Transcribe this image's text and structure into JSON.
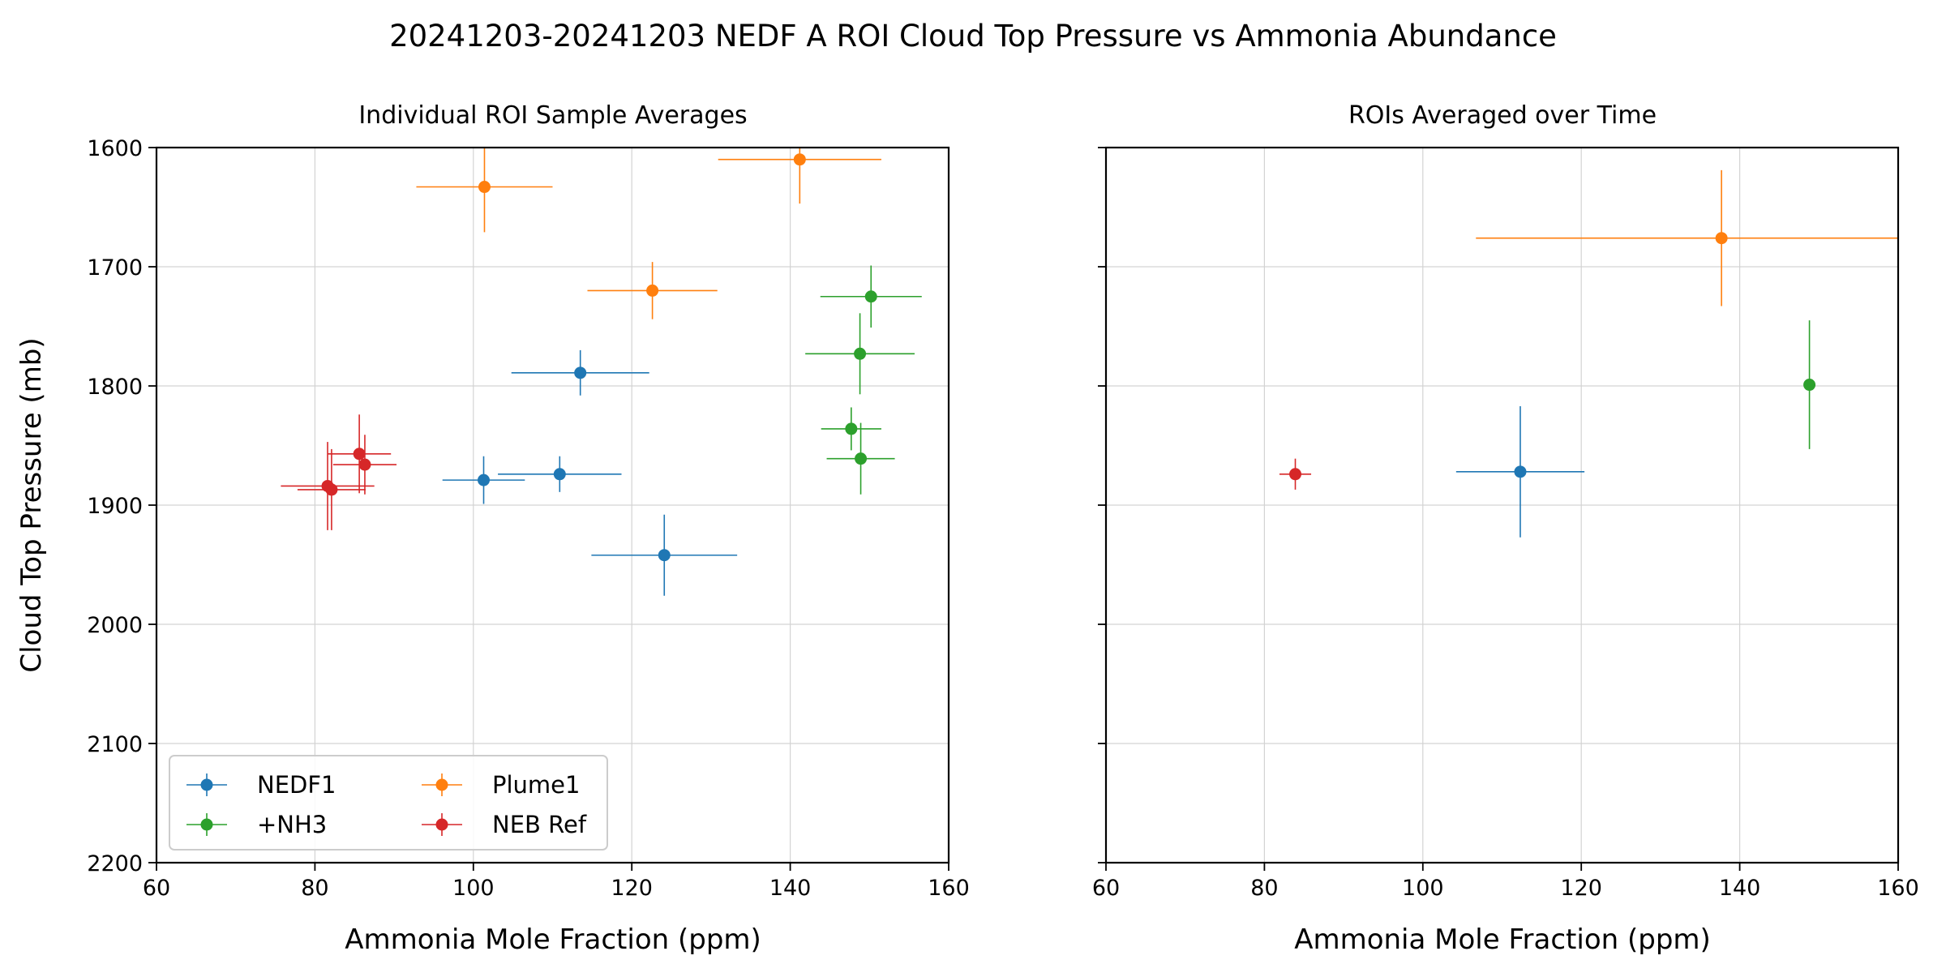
{
  "suptitle": "20241203-20241203 NEDF A ROI Cloud Top Pressure vs Ammonia Abundance",
  "chart_data": [
    {
      "type": "scatter",
      "title": "Individual ROI Sample Averages",
      "xlabel": "Ammonia Mole Fraction (ppm)",
      "ylabel": "Cloud Top Pressure (mb)",
      "xlim": [
        60,
        160
      ],
      "ylim": [
        2200,
        1600
      ],
      "y_inverted": true,
      "grid": true,
      "xticks": [
        "60",
        "80",
        "100",
        "120",
        "140",
        "160"
      ],
      "yticks": [
        "1600",
        "1700",
        "1800",
        "1900",
        "2000",
        "2100",
        "2200"
      ],
      "legend": {
        "placement": "lower-left",
        "columns": 2
      },
      "series": [
        {
          "name": "NEDF1",
          "color": "#1f77b4",
          "points": [
            {
              "x": 113.5,
              "y": 1789,
              "xerr": 8.7,
              "yerr": 19
            },
            {
              "x": 101.3,
              "y": 1879,
              "xerr": 5.2,
              "yerr": 20
            },
            {
              "x": 110.9,
              "y": 1874,
              "xerr": 7.8,
              "yerr": 15
            },
            {
              "x": 124.1,
              "y": 1942,
              "xerr": 9.2,
              "yerr": 34
            }
          ]
        },
        {
          "name": "Plume1",
          "color": "#ff7f0e",
          "points": [
            {
              "x": 101.4,
              "y": 1633,
              "xerr": 8.6,
              "yerr": 38
            },
            {
              "x": 141.2,
              "y": 1610,
              "xerr": 10.3,
              "yerr": 37
            },
            {
              "x": 122.6,
              "y": 1720,
              "xerr": 8.2,
              "yerr": 24
            }
          ]
        },
        {
          "name": "+NH3",
          "color": "#2ca02c",
          "points": [
            {
              "x": 150.2,
              "y": 1725,
              "xerr": 6.4,
              "yerr": 26
            },
            {
              "x": 148.8,
              "y": 1773,
              "xerr": 6.9,
              "yerr": 34
            },
            {
              "x": 147.7,
              "y": 1836,
              "xerr": 3.8,
              "yerr": 18
            },
            {
              "x": 148.9,
              "y": 1861,
              "xerr": 4.3,
              "yerr": 30
            }
          ]
        },
        {
          "name": "NEB Ref",
          "color": "#d62728",
          "points": [
            {
              "x": 85.6,
              "y": 1857,
              "xerr": 4.0,
              "yerr": 33
            },
            {
              "x": 86.3,
              "y": 1866,
              "xerr": 4.0,
              "yerr": 25
            },
            {
              "x": 81.6,
              "y": 1884,
              "xerr": 5.9,
              "yerr": 37
            },
            {
              "x": 82.1,
              "y": 1887,
              "xerr": 4.3,
              "yerr": 34
            }
          ]
        }
      ]
    },
    {
      "type": "scatter",
      "title": "ROIs Averaged over Time",
      "xlabel": "Ammonia Mole Fraction (ppm)",
      "ylabel": "",
      "xlim": [
        60,
        160
      ],
      "ylim": [
        2200,
        1600
      ],
      "y_inverted": true,
      "grid": true,
      "shared_y": true,
      "xticks": [
        "60",
        "80",
        "100",
        "120",
        "140",
        "160"
      ],
      "series": [
        {
          "name": "NEDF1",
          "color": "#1f77b4",
          "points": [
            {
              "x": 112.3,
              "y": 1872,
              "xerr": 8.1,
              "yerr": 55
            }
          ]
        },
        {
          "name": "Plume1",
          "color": "#ff7f0e",
          "points": [
            {
              "x": 137.7,
              "y": 1676,
              "xerr": 31,
              "yerr": 57
            }
          ]
        },
        {
          "name": "+NH3",
          "color": "#2ca02c",
          "points": [
            {
              "x": 148.8,
              "y": 1799,
              "xerr": 0,
              "yerr": 54
            }
          ]
        },
        {
          "name": "NEB Ref",
          "color": "#d62728",
          "points": [
            {
              "x": 83.9,
              "y": 1874,
              "xerr": 2.0,
              "yerr": 13
            }
          ]
        }
      ]
    }
  ]
}
